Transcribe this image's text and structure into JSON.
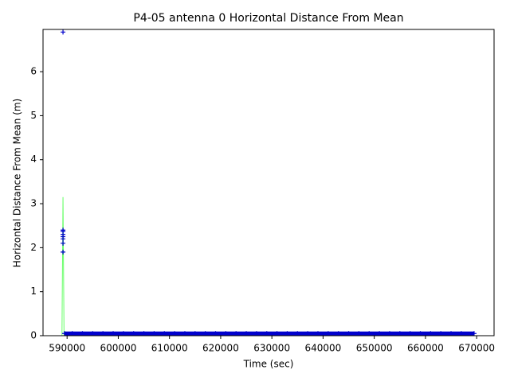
{
  "chart_data": {
    "type": "line",
    "title": "P4-05 antenna 0 Horizontal Distance From Mean",
    "xlabel": "Time (sec)",
    "ylabel": "Horizontal Distance From Mean (m)",
    "xlim": [
      585300,
      673400
    ],
    "ylim": [
      0,
      6.96
    ],
    "xticks": [
      590000,
      600000,
      610000,
      620000,
      630000,
      640000,
      650000,
      660000,
      670000
    ],
    "yticks": [
      0,
      1,
      2,
      3,
      4,
      5,
      6
    ],
    "series": [
      {
        "color": "#66ff66",
        "line": true,
        "marker": "none",
        "x": [
          589000,
          589200,
          589400,
          669500
        ],
        "values": [
          0,
          3.15,
          0.01,
          0.01
        ]
      },
      {
        "color": "#0000cc",
        "line": false,
        "marker": "+",
        "x": [
          589200,
          589200,
          589200,
          589200,
          589200,
          589200,
          589200,
          589200
        ],
        "values": [
          6.9,
          2.4,
          2.37,
          2.3,
          2.25,
          2.2,
          2.1,
          1.9
        ]
      },
      {
        "color": "#0000cc",
        "line": true,
        "marker": "+",
        "x": [
          589500,
          591000,
          593000,
          595000,
          597000,
          599000,
          601000,
          603000,
          605000,
          607000,
          609000,
          611000,
          613000,
          615000,
          617000,
          619000,
          621000,
          623000,
          625000,
          627000,
          629000,
          631000,
          633000,
          635000,
          637000,
          639000,
          641000,
          643000,
          645000,
          647000,
          649000,
          651000,
          653000,
          655000,
          657000,
          659000,
          661000,
          663000,
          665000,
          667000,
          669500
        ],
        "values": [
          0.05,
          0.05,
          0.05,
          0.05,
          0.05,
          0.05,
          0.05,
          0.05,
          0.05,
          0.05,
          0.05,
          0.05,
          0.05,
          0.05,
          0.05,
          0.05,
          0.05,
          0.05,
          0.05,
          0.05,
          0.05,
          0.05,
          0.05,
          0.05,
          0.05,
          0.05,
          0.05,
          0.05,
          0.05,
          0.05,
          0.05,
          0.05,
          0.05,
          0.05,
          0.05,
          0.05,
          0.05,
          0.05,
          0.05,
          0.05,
          0.05
        ]
      }
    ]
  }
}
